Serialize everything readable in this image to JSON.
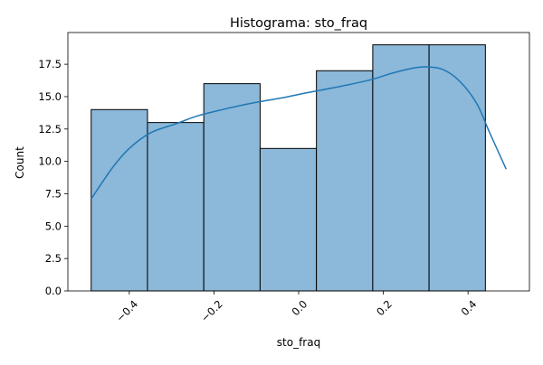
{
  "chart_data": {
    "type": "bar",
    "title": "Histograma: sto_fraq",
    "xlabel": "sto_fraq",
    "ylabel": "Count",
    "xlim": [
      -0.545,
      0.545
    ],
    "ylim": [
      0,
      19.95
    ],
    "bin_edges": [
      -0.49,
      -0.357,
      -0.224,
      -0.091,
      0.042,
      0.175,
      0.308,
      0.441
    ],
    "bin_edges_note": "",
    "values": [
      14,
      13,
      16,
      11,
      17,
      19,
      19
    ],
    "x_ticks": [
      -0.4,
      -0.2,
      0.0,
      0.2,
      0.4
    ],
    "x_tick_labels": [
      "−0.4",
      "−0.2",
      "0.0",
      "0.2",
      "0.4"
    ],
    "y_ticks": [
      0.0,
      2.5,
      5.0,
      7.5,
      10.0,
      12.5,
      15.0,
      17.5
    ],
    "y_tick_labels": [
      "0.0",
      "2.5",
      "5.0",
      "7.5",
      "10.0",
      "12.5",
      "15.0",
      "17.5"
    ],
    "kde": {
      "x": [
        -0.49,
        -0.44,
        -0.4,
        -0.35,
        -0.29,
        -0.24,
        -0.18,
        -0.11,
        -0.04,
        0.02,
        0.1,
        0.17,
        0.22,
        0.27,
        0.3,
        0.34,
        0.38,
        0.42,
        0.45,
        0.49
      ],
      "y": [
        7.1,
        9.5,
        11.0,
        12.2,
        12.9,
        13.5,
        14.0,
        14.5,
        14.9,
        15.3,
        15.8,
        16.3,
        16.8,
        17.2,
        17.3,
        17.1,
        16.2,
        14.5,
        12.3,
        9.4
      ]
    },
    "grid": false,
    "legend": "none",
    "colors": {
      "bar_fill": "#8cb8d9",
      "kde_line": "#1f77b4",
      "edge": "#000000"
    }
  }
}
